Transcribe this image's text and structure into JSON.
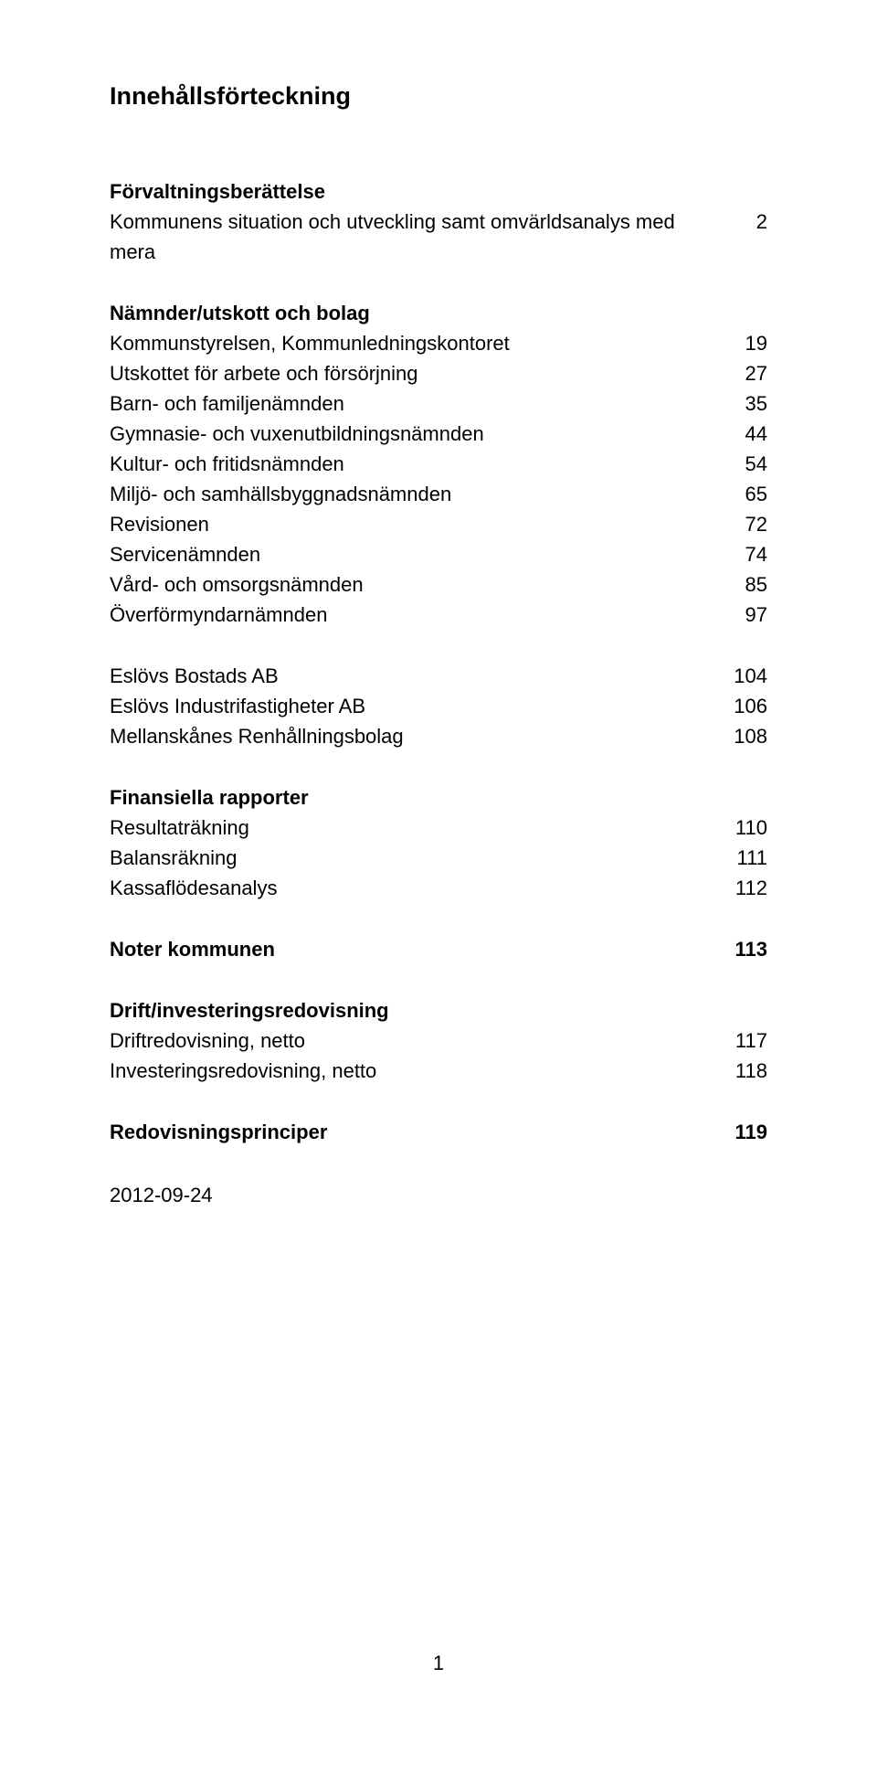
{
  "title": "Innehållsförteckning",
  "sections": [
    {
      "heading": "Förvaltningsberättelse",
      "items": [
        {
          "label": "Kommunens situation och utveckling samt omvärldsanalys med mera",
          "page": "2"
        }
      ]
    },
    {
      "heading": "Nämnder/utskott och bolag",
      "items": [
        {
          "label": "Kommunstyrelsen, Kommunledningskontoret",
          "page": "19"
        },
        {
          "label": "Utskottet för arbete och försörjning",
          "page": "27"
        },
        {
          "label": "Barn- och familjenämnden",
          "page": "35"
        },
        {
          "label": "Gymnasie- och vuxenutbildningsnämnden",
          "page": "44"
        },
        {
          "label": "Kultur- och fritidsnämnden",
          "page": "54"
        },
        {
          "label": "Miljö- och samhällsbyggnadsnämnden",
          "page": "65"
        },
        {
          "label": "Revisionen",
          "page": "72"
        },
        {
          "label": "Servicenämnden",
          "page": "74"
        },
        {
          "label": "Vård- och omsorgsnämnden",
          "page": "85"
        },
        {
          "label": "Överförmyndarnämnden",
          "page": "97"
        }
      ]
    },
    {
      "heading": null,
      "items": [
        {
          "label": "Eslövs Bostads AB",
          "page": "104"
        },
        {
          "label": "Eslövs Industrifastigheter AB",
          "page": "106"
        },
        {
          "label": "Mellanskånes Renhållningsbolag",
          "page": "108"
        }
      ]
    },
    {
      "heading": "Finansiella rapporter",
      "items": [
        {
          "label": "Resultaträkning",
          "page": "110"
        },
        {
          "label": "Balansräkning",
          "page": "111"
        },
        {
          "label": "Kassaflödesanalys",
          "page": "112"
        }
      ]
    },
    {
      "heading": null,
      "bold_row": {
        "label": "Noter kommunen",
        "page": "113"
      }
    },
    {
      "heading": "Drift/investeringsredovisning",
      "items": [
        {
          "label": "Driftredovisning, netto",
          "page": "117"
        },
        {
          "label": "Investeringsredovisning, netto",
          "page": "118"
        }
      ]
    },
    {
      "heading": null,
      "bold_row": {
        "label": "Redovisningsprinciper",
        "page": "119"
      }
    }
  ],
  "date": "2012-09-24",
  "page_number": "1"
}
